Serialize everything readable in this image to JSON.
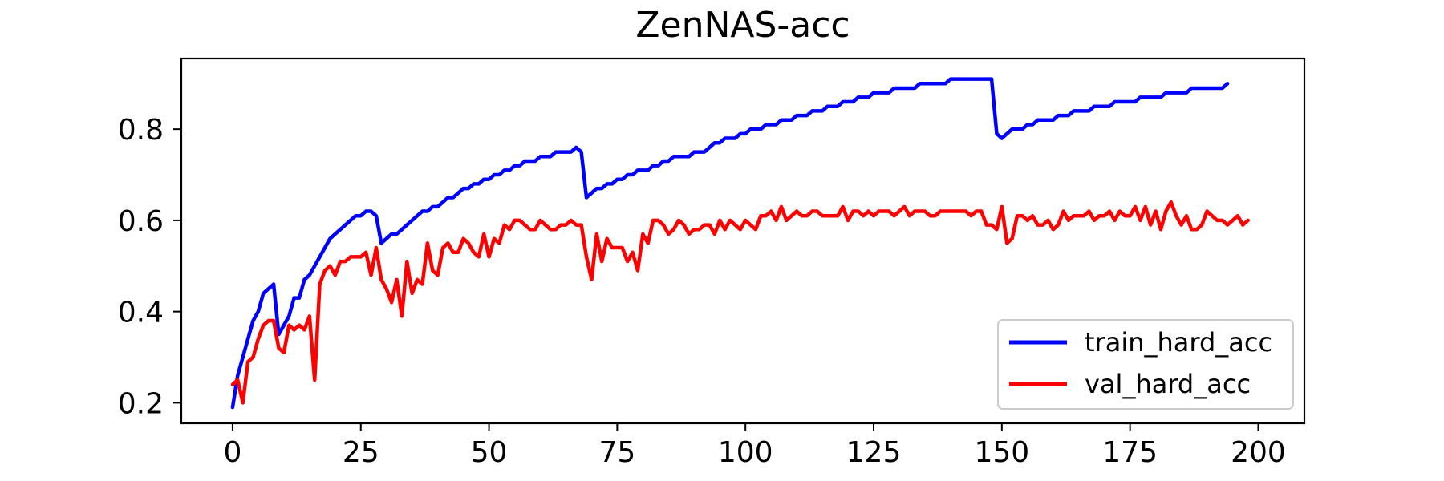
{
  "chart_data": {
    "type": "line",
    "title": "ZenNAS-acc",
    "xlabel": "",
    "ylabel": "",
    "xlim": [
      -10,
      209
    ],
    "ylim": [
      0.155,
      0.955
    ],
    "xticks": [
      0,
      25,
      50,
      75,
      100,
      125,
      150,
      175,
      200
    ],
    "yticks": [
      0.2,
      0.4,
      0.6,
      0.8
    ],
    "ytick_labels": [
      "0.2",
      "0.4",
      "0.6",
      "0.8"
    ],
    "grid": false,
    "legend_position": "lower-right",
    "series": [
      {
        "name": "train_hard_acc",
        "color": "#0000ff",
        "values": [
          0.19,
          0.26,
          0.3,
          0.34,
          0.38,
          0.4,
          0.44,
          0.45,
          0.46,
          0.35,
          0.37,
          0.39,
          0.43,
          0.43,
          0.47,
          0.48,
          0.5,
          0.52,
          0.54,
          0.56,
          0.57,
          0.58,
          0.59,
          0.6,
          0.61,
          0.61,
          0.62,
          0.62,
          0.61,
          0.55,
          0.56,
          0.57,
          0.57,
          0.58,
          0.59,
          0.6,
          0.61,
          0.62,
          0.62,
          0.63,
          0.63,
          0.64,
          0.65,
          0.65,
          0.66,
          0.67,
          0.67,
          0.68,
          0.68,
          0.69,
          0.69,
          0.7,
          0.7,
          0.71,
          0.71,
          0.72,
          0.72,
          0.73,
          0.73,
          0.73,
          0.74,
          0.74,
          0.74,
          0.75,
          0.75,
          0.75,
          0.75,
          0.76,
          0.75,
          0.65,
          0.66,
          0.67,
          0.67,
          0.68,
          0.68,
          0.69,
          0.69,
          0.7,
          0.7,
          0.71,
          0.71,
          0.71,
          0.72,
          0.72,
          0.73,
          0.73,
          0.74,
          0.74,
          0.74,
          0.74,
          0.75,
          0.75,
          0.75,
          0.76,
          0.77,
          0.77,
          0.78,
          0.78,
          0.78,
          0.79,
          0.79,
          0.8,
          0.8,
          0.8,
          0.81,
          0.81,
          0.81,
          0.82,
          0.82,
          0.82,
          0.83,
          0.83,
          0.83,
          0.84,
          0.84,
          0.84,
          0.85,
          0.85,
          0.85,
          0.86,
          0.86,
          0.86,
          0.87,
          0.87,
          0.87,
          0.88,
          0.88,
          0.88,
          0.88,
          0.89,
          0.89,
          0.89,
          0.89,
          0.89,
          0.9,
          0.9,
          0.9,
          0.9,
          0.9,
          0.9,
          0.91,
          0.91,
          0.91,
          0.91,
          0.91,
          0.91,
          0.91,
          0.91,
          0.91,
          0.79,
          0.78,
          0.79,
          0.8,
          0.8,
          0.8,
          0.81,
          0.81,
          0.82,
          0.82,
          0.82,
          0.82,
          0.83,
          0.83,
          0.83,
          0.84,
          0.84,
          0.84,
          0.84,
          0.85,
          0.85,
          0.85,
          0.85,
          0.86,
          0.86,
          0.86,
          0.86,
          0.86,
          0.87,
          0.87,
          0.87,
          0.87,
          0.87,
          0.88,
          0.88,
          0.88,
          0.88,
          0.88,
          0.89,
          0.89,
          0.89,
          0.89,
          0.89,
          0.89,
          0.89,
          0.9
        ]
      },
      {
        "name": "val_hard_acc",
        "color": "#ff0000",
        "values": [
          0.24,
          0.25,
          0.2,
          0.29,
          0.3,
          0.34,
          0.37,
          0.38,
          0.38,
          0.32,
          0.31,
          0.37,
          0.36,
          0.37,
          0.36,
          0.39,
          0.25,
          0.46,
          0.49,
          0.5,
          0.48,
          0.51,
          0.51,
          0.52,
          0.52,
          0.52,
          0.53,
          0.48,
          0.54,
          0.47,
          0.45,
          0.42,
          0.47,
          0.39,
          0.51,
          0.44,
          0.47,
          0.46,
          0.55,
          0.49,
          0.48,
          0.54,
          0.55,
          0.53,
          0.53,
          0.56,
          0.55,
          0.53,
          0.52,
          0.57,
          0.52,
          0.56,
          0.55,
          0.59,
          0.58,
          0.6,
          0.6,
          0.59,
          0.58,
          0.58,
          0.6,
          0.59,
          0.58,
          0.58,
          0.59,
          0.59,
          0.6,
          0.59,
          0.59,
          0.52,
          0.47,
          0.57,
          0.51,
          0.56,
          0.54,
          0.54,
          0.54,
          0.51,
          0.53,
          0.49,
          0.57,
          0.55,
          0.6,
          0.6,
          0.59,
          0.57,
          0.58,
          0.6,
          0.59,
          0.57,
          0.58,
          0.58,
          0.59,
          0.59,
          0.57,
          0.6,
          0.58,
          0.6,
          0.59,
          0.58,
          0.6,
          0.59,
          0.58,
          0.61,
          0.61,
          0.62,
          0.6,
          0.63,
          0.6,
          0.61,
          0.62,
          0.61,
          0.61,
          0.62,
          0.62,
          0.61,
          0.61,
          0.61,
          0.61,
          0.63,
          0.6,
          0.62,
          0.62,
          0.61,
          0.62,
          0.61,
          0.62,
          0.62,
          0.62,
          0.61,
          0.62,
          0.63,
          0.61,
          0.62,
          0.62,
          0.62,
          0.61,
          0.61,
          0.62,
          0.62,
          0.62,
          0.62,
          0.62,
          0.62,
          0.61,
          0.62,
          0.62,
          0.59,
          0.59,
          0.58,
          0.63,
          0.55,
          0.56,
          0.61,
          0.61,
          0.6,
          0.61,
          0.59,
          0.59,
          0.6,
          0.58,
          0.59,
          0.62,
          0.6,
          0.61,
          0.61,
          0.61,
          0.62,
          0.6,
          0.61,
          0.61,
          0.62,
          0.6,
          0.62,
          0.61,
          0.61,
          0.63,
          0.6,
          0.63,
          0.59,
          0.62,
          0.58,
          0.62,
          0.64,
          0.61,
          0.59,
          0.61,
          0.58,
          0.58,
          0.59,
          0.62,
          0.61,
          0.6,
          0.6,
          0.59,
          0.6,
          0.61,
          0.59,
          0.6
        ]
      }
    ]
  }
}
